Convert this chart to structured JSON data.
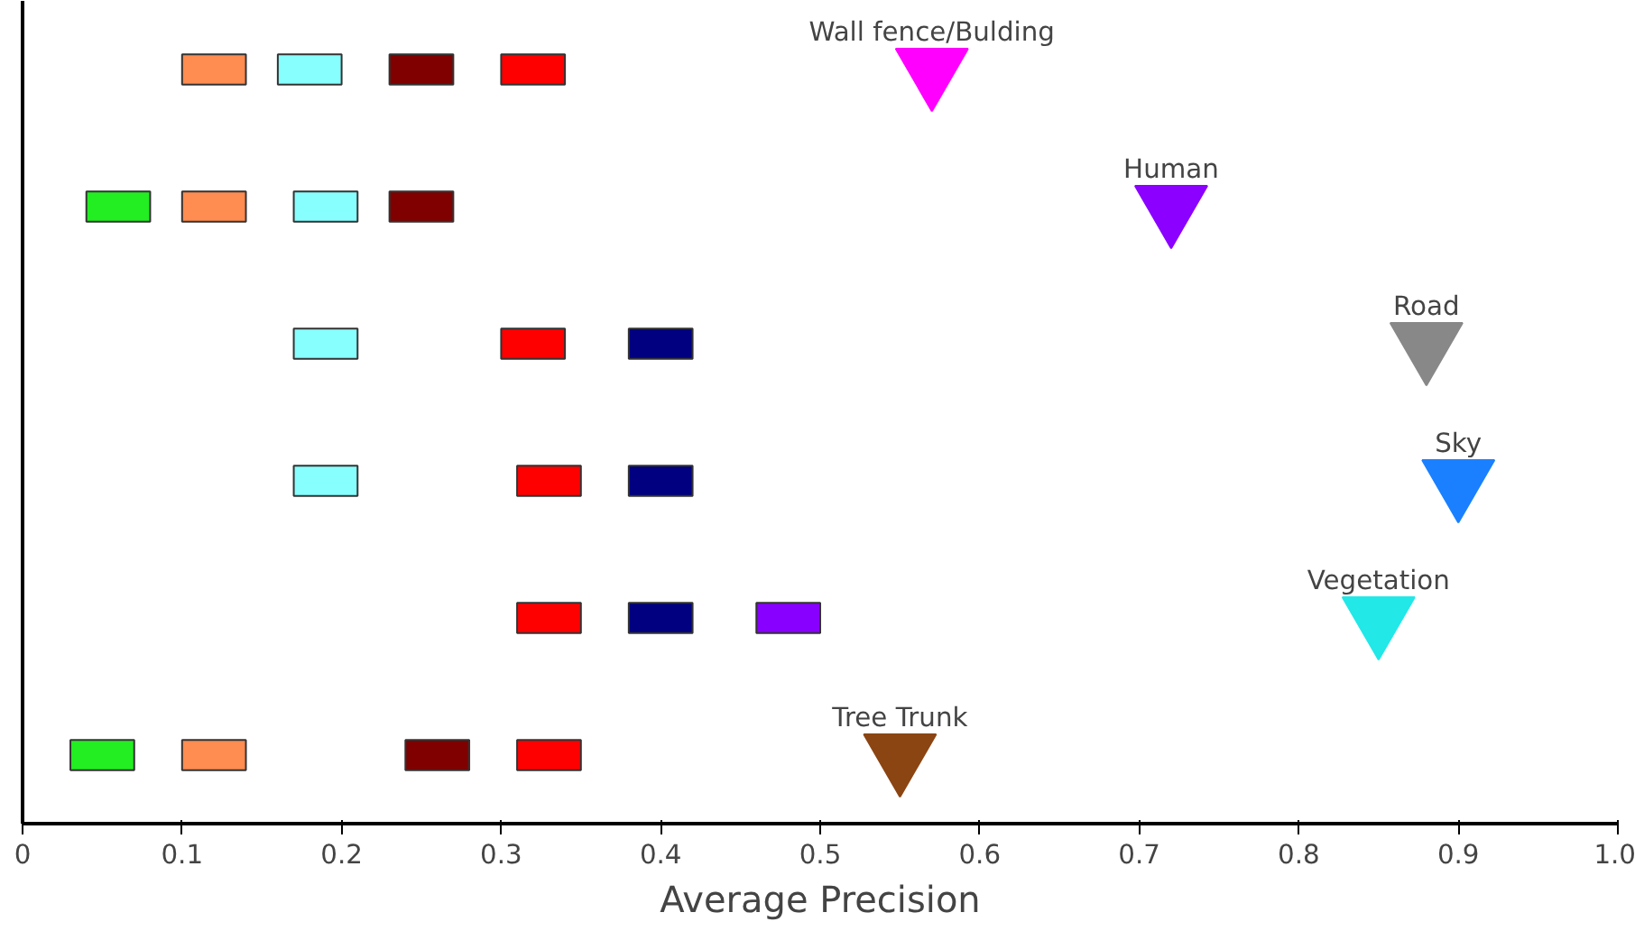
{
  "chart_data": {
    "type": "scatter",
    "orientation": "horizontal",
    "xlabel": "Average Precision",
    "categories": [
      null,
      null,
      null,
      null,
      null,
      null
    ],
    "xlim": [
      0,
      1.0
    ],
    "xticks": [
      0,
      0.1,
      0.2,
      0.3,
      0.4,
      0.5,
      0.6,
      0.7,
      0.8,
      0.9,
      {
        "value": 1.0,
        "label": "1.0"
      }
    ],
    "tick_labels": "x",
    "grid": false,
    "series": [
      {
        "color": "#22ee22",
        "marker": "square",
        "values": [
          null,
          0.06,
          null,
          null,
          null,
          0.05
        ]
      },
      {
        "color": "#ff8c50",
        "marker": "square",
        "values": [
          0.12,
          0.12,
          null,
          null,
          null,
          0.12
        ]
      },
      {
        "color": "#88ffff",
        "marker": "square",
        "values": [
          0.18,
          0.19,
          0.19,
          0.19,
          null,
          null
        ]
      },
      {
        "color": "#800000",
        "marker": "square",
        "values": [
          0.25,
          0.25,
          null,
          null,
          null,
          0.26
        ]
      },
      {
        "color": "#ff0000",
        "marker": "square",
        "values": [
          0.32,
          null,
          0.32,
          0.33,
          0.33,
          0.33
        ]
      },
      {
        "color": "#000080",
        "marker": "square",
        "values": [
          null,
          null,
          0.4,
          0.4,
          0.4,
          null
        ]
      },
      {
        "color": "#8800ff",
        "marker": "square",
        "values": [
          null,
          null,
          null,
          null,
          0.48,
          null
        ]
      },
      {
        "marker": "triangle",
        "colors": [
          "#ff00ff",
          "#8b00ff",
          "#888888",
          "#1a80ff",
          "#22e8e8",
          "#8b4513"
        ],
        "values": [
          0.57,
          0.72,
          0.88,
          0.9,
          0.85,
          0.55
        ],
        "value_labels": [
          "Wall fence/Bulding",
          "Human",
          "Road",
          "Sky",
          "Vegetation",
          "Tree Trunk"
        ]
      }
    ]
  }
}
